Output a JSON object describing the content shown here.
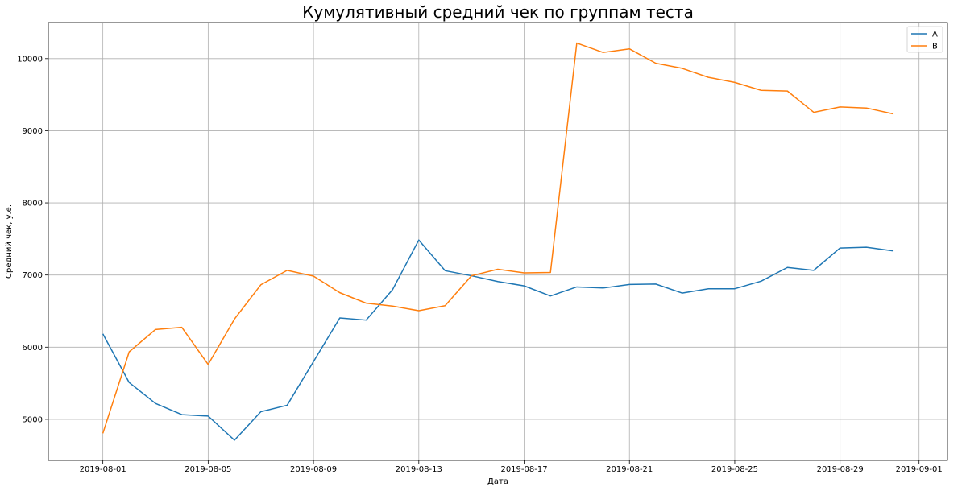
{
  "chart_data": {
    "type": "line",
    "title": "Кумулятивный средний чек по группам теста",
    "xlabel": "Дата",
    "ylabel": "Средний чек, у.е.",
    "x_ticks": [
      "2019-08-01",
      "2019-08-05",
      "2019-08-09",
      "2019-08-13",
      "2019-08-17",
      "2019-08-21",
      "2019-08-25",
      "2019-08-29",
      "2019-09-01"
    ],
    "y_ticks": [
      5000,
      6000,
      7000,
      8000,
      9000,
      10000
    ],
    "xlim": [
      "2019-07-30",
      "2019-09-01"
    ],
    "ylim": [
      4430,
      10500
    ],
    "grid": true,
    "legend_position": "top-right",
    "x": [
      "2019-08-01",
      "2019-08-02",
      "2019-08-03",
      "2019-08-04",
      "2019-08-05",
      "2019-08-06",
      "2019-08-07",
      "2019-08-08",
      "2019-08-09",
      "2019-08-10",
      "2019-08-11",
      "2019-08-12",
      "2019-08-13",
      "2019-08-14",
      "2019-08-15",
      "2019-08-16",
      "2019-08-17",
      "2019-08-18",
      "2019-08-19",
      "2019-08-20",
      "2019-08-21",
      "2019-08-22",
      "2019-08-23",
      "2019-08-24",
      "2019-08-25",
      "2019-08-26",
      "2019-08-27",
      "2019-08-28",
      "2019-08-29",
      "2019-08-30",
      "2019-08-31"
    ],
    "series": [
      {
        "name": "A",
        "color": "#1f77b4",
        "values": [
          6185,
          5510,
          5220,
          5065,
          5045,
          4710,
          5105,
          5195,
          5800,
          6405,
          6375,
          6795,
          7485,
          7060,
          6990,
          6910,
          6850,
          6710,
          6835,
          6820,
          6870,
          6875,
          6750,
          6810,
          6810,
          6915,
          7105,
          7065,
          7375,
          7385,
          7335
        ]
      },
      {
        "name": "B",
        "color": "#ff7f0e",
        "values": [
          4805,
          5935,
          6245,
          6275,
          5760,
          6390,
          6865,
          7065,
          6985,
          6755,
          6610,
          6570,
          6505,
          6575,
          6990,
          7080,
          7030,
          7035,
          10215,
          10085,
          10135,
          9935,
          9865,
          9740,
          9670,
          9560,
          9550,
          9255,
          9330,
          9315,
          9235
        ]
      }
    ]
  }
}
